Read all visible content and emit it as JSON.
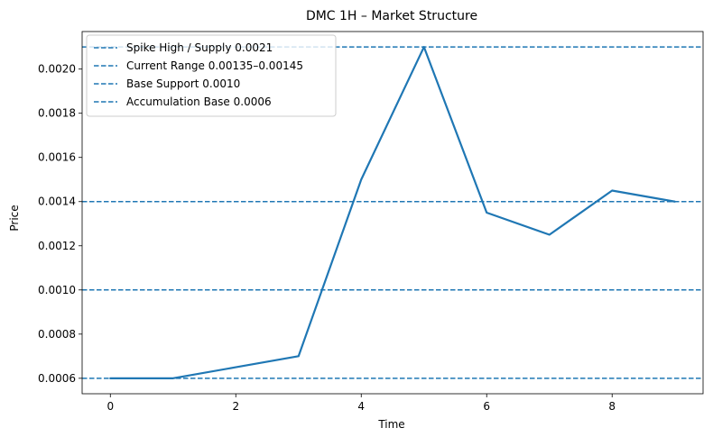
{
  "chart_data": {
    "type": "line",
    "title": "DMC 1H – Market Structure",
    "xlabel": "Time",
    "ylabel": "Price",
    "xlim": [
      -0.45,
      9.45
    ],
    "ylim": [
      0.00053,
      0.00217
    ],
    "xticks": [
      0,
      2,
      4,
      6,
      8
    ],
    "yticks": [
      0.0006,
      0.0008,
      0.001,
      0.0012,
      0.0014,
      0.0016,
      0.0018,
      0.002
    ],
    "xtick_labels": [
      "0",
      "2",
      "4",
      "6",
      "8"
    ],
    "ytick_labels": [
      "0.0006",
      "0.0008",
      "0.0010",
      "0.0012",
      "0.0014",
      "0.0016",
      "0.0018",
      "0.0020"
    ],
    "grid": false,
    "legend_position": "top-left",
    "line_color": "#1f77b4",
    "series": [
      {
        "x": [
          0,
          1,
          2,
          3,
          4,
          5,
          6,
          7,
          8,
          9
        ],
        "values": [
          0.0006,
          0.0006,
          0.00065,
          0.0007,
          0.0015,
          0.0021,
          0.00135,
          0.00125,
          0.00145,
          0.0014
        ]
      }
    ],
    "hlines": [
      {
        "label": "Spike High / Supply 0.0021",
        "y": 0.0021
      },
      {
        "label": "Current Range 0.00135–0.00145",
        "y": 0.0014
      },
      {
        "label": "Base Support 0.0010",
        "y": 0.001
      },
      {
        "label": "Accumulation Base 0.0006",
        "y": 0.0006
      }
    ]
  }
}
